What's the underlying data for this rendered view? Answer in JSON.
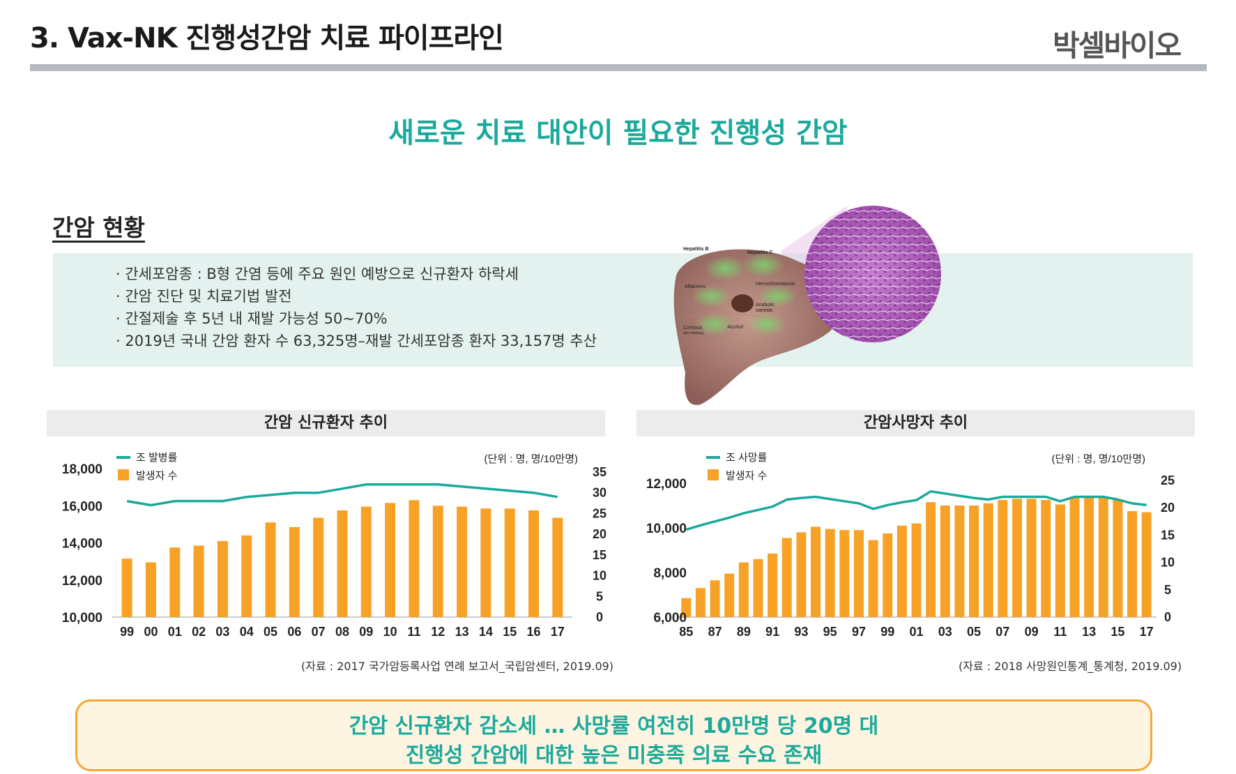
{
  "header": {
    "title": "3. Vax-NK 진행성간암 치료 파이프라인",
    "logo": "박셀바이오"
  },
  "headline": "새로운 치료 대안이 필요한 진행성 간암",
  "section": {
    "title": "간암 현황",
    "bullets": [
      "· 간세포암종 : B형 간염 등에 주요 원인 예방으로 신규환자 하락세",
      "· 간암 진단 및 치료기법 발전",
      "· 간절제술 후 5년 내 재발 가능성 50~70%",
      "· 2019년 국내 간암 환자 수 63,325명–재발 간세포암종 환자 33,157명 추산"
    ]
  },
  "illustration": {
    "labels": [
      "Hepatitis B",
      "Hepatitis C",
      "Aflatoxins",
      "Hemochromatosis",
      "Anabolic",
      "steroids",
      "Cirrhosis",
      "(any etiology)",
      "Alcohol"
    ]
  },
  "colors": {
    "line": "#1ba99b",
    "bar": "#f7a226",
    "header_bg": "#ececec",
    "title_rule": "#b4b9c0",
    "info_bg": "#e3f2ef",
    "callout_border": "#f3a838"
  },
  "chart_data": [
    {
      "type": "bar",
      "title": "간암 신규환자 추이",
      "unit": "(단위 : 명, 명/10만명)",
      "categories": [
        "99",
        "00",
        "01",
        "02",
        "03",
        "04",
        "05",
        "06",
        "07",
        "08",
        "09",
        "10",
        "11",
        "12",
        "13",
        "14",
        "15",
        "16",
        "17"
      ],
      "series": [
        {
          "name": "발생자 수",
          "type": "bar",
          "axis": "left",
          "values": [
            13150,
            12950,
            13750,
            13850,
            14100,
            14400,
            15100,
            14850,
            15350,
            15750,
            15950,
            16150,
            16300,
            16000,
            15950,
            15850,
            15850,
            15750,
            15350
          ]
        },
        {
          "name": "조 발병률",
          "type": "line",
          "axis": "right",
          "values": [
            28,
            27,
            28,
            28,
            28,
            29,
            29.5,
            30,
            30,
            31,
            32,
            32,
            32,
            32,
            31.5,
            31,
            30.5,
            30,
            29
          ]
        }
      ],
      "ylim_left": [
        10000,
        18000
      ],
      "yticks_left": [
        "10,000",
        "12,000",
        "14,000",
        "16,000",
        "18,000"
      ],
      "ylim_right": [
        0,
        35
      ],
      "yticks_right": [
        "0",
        "5",
        "10",
        "15",
        "20",
        "25",
        "30",
        "35"
      ],
      "legend": [
        "조 발병률",
        "발생자 수"
      ],
      "source": "(자료 : 2017 국가암등록사업 연례 보고서_국립암센터, 2019.09)"
    },
    {
      "type": "bar",
      "title": "간암사망자 추이",
      "unit": "(단위 : 명, 명/10만명)",
      "categories": [
        "85",
        "86",
        "87",
        "88",
        "89",
        "90",
        "91",
        "92",
        "93",
        "94",
        "95",
        "96",
        "97",
        "98",
        "99",
        "00",
        "01",
        "02",
        "03",
        "04",
        "05",
        "06",
        "07",
        "08",
        "09",
        "10",
        "11",
        "12",
        "13",
        "14",
        "15",
        "16",
        "17"
      ],
      "tick_labels": [
        "85",
        "87",
        "89",
        "91",
        "93",
        "95",
        "97",
        "99",
        "01",
        "03",
        "05",
        "07",
        "09",
        "11",
        "13",
        "15",
        "17"
      ],
      "series": [
        {
          "name": "발생자 수",
          "type": "bar",
          "axis": "left",
          "values": [
            6850,
            7300,
            7650,
            7950,
            8450,
            8600,
            8850,
            9550,
            9800,
            10050,
            9950,
            9900,
            9900,
            9450,
            9750,
            10100,
            10200,
            11150,
            11000,
            11000,
            11000,
            11100,
            11250,
            11300,
            11300,
            11250,
            11050,
            11400,
            11400,
            11400,
            11250,
            10750,
            10700
          ]
        },
        {
          "name": "조 사망률",
          "type": "line",
          "axis": "right",
          "values": [
            16,
            16.8,
            17.5,
            18.2,
            19,
            19.6,
            20.2,
            21.5,
            21.8,
            22,
            21.6,
            21.2,
            20.8,
            19.8,
            20.5,
            21,
            21.4,
            23,
            22.6,
            22.2,
            21.8,
            21.5,
            22,
            22,
            22,
            22,
            21.2,
            22,
            22,
            22,
            21.5,
            20.8,
            20.5
          ]
        }
      ],
      "ylim_left": [
        6000,
        12000
      ],
      "yticks_left": [
        "6,000",
        "8,000",
        "10,000",
        "12,000"
      ],
      "ylim_right": [
        0,
        25
      ],
      "yticks_right": [
        "0",
        "5",
        "10",
        "15",
        "20",
        "25"
      ],
      "legend": [
        "조 사망률",
        "발생자 수"
      ],
      "source": "(자료 : 2018 사망원인통계_통계청, 2019.09)"
    }
  ],
  "callout": {
    "line1": "간암 신규환자 감소세 … 사망률 여전히 10만명 당 20명 대",
    "line2": "진행성 간암에 대한 높은 미충족 의료 수요 존재"
  }
}
